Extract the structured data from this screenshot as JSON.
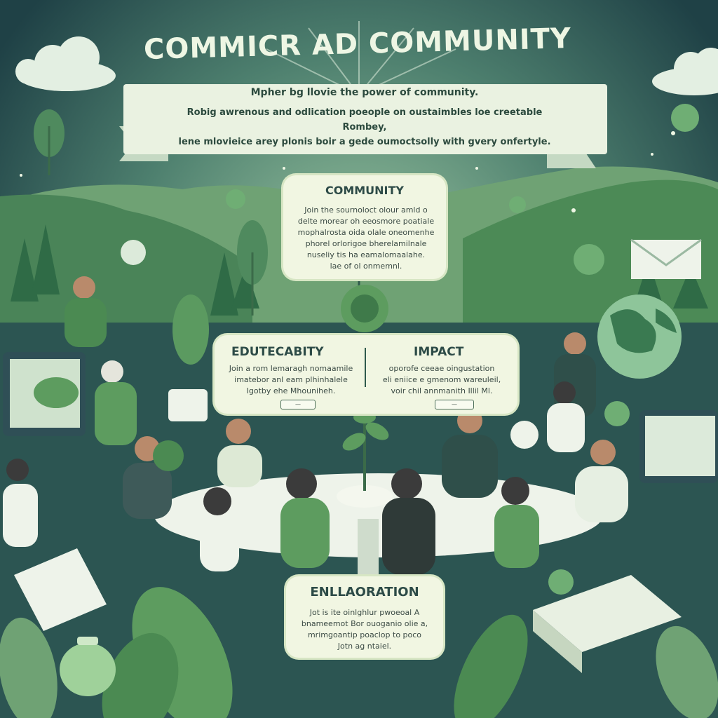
{
  "title": "COMMICR AD COMMUNITY",
  "banner": {
    "subtitle": "Mpher bg llovie the power of community.",
    "body_line1": "Robig awrenous and odlication poeople on oustaimbles loe creetable Rombey,",
    "body_line2": "lene mlovieice arey plonis boir a gede oumoctsolly with gvery onfertyle."
  },
  "cards": {
    "community": {
      "heading": "COMMUNITY",
      "body": [
        "Join the sournoloct olour amld o",
        "delte morear oh eeosmore poatiale",
        "mophalrosta oida olale oneomenhe",
        "phorel orlorigoe bherelamilnale",
        "nuseliy tis ha eamalomaalahe.",
        "lae of ol onmemnl."
      ]
    },
    "education": {
      "heading": "EDUTECABITY",
      "body": [
        "Join a rom lemaragh nomaamile",
        "imatebor anl eam plhinhalele",
        "Igotby ehe Mhouniheh."
      ],
      "pill": "—"
    },
    "impact": {
      "heading": "IMPACT",
      "body": [
        "oporofe ceeae oingustation",
        "eli eniice e gmenom wareuleil,",
        "voir chil annmanith Illil Ml."
      ],
      "pill": "—"
    },
    "collaboration": {
      "heading": "ENLLAORATION",
      "body": [
        "Jot is ite oinlghlur pwoeoal A",
        "bnameemot Bor ouoganio olie a,",
        "mrimgoantip poaclop to poco",
        "Jotn ag ntaiel."
      ]
    }
  },
  "colors": {
    "sky_dark": "#1f4146",
    "sky_light": "#6d9c84",
    "hill_green": "#4f8a5e",
    "card_bg": "#f1f6e2",
    "banner_bg": "#eaf2e1",
    "leaf_green": "#5d9c5f",
    "table_white": "#eef3ea"
  }
}
